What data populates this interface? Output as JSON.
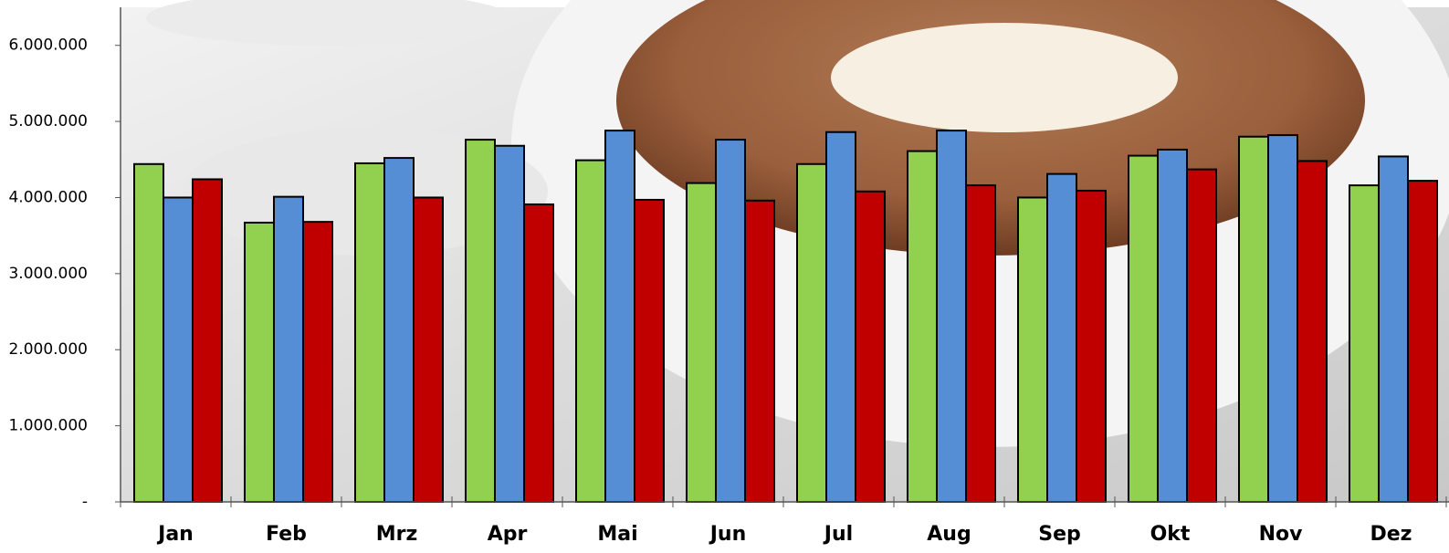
{
  "chart_data": {
    "type": "bar",
    "categories": [
      "Jan",
      "Feb",
      "Mrz",
      "Apr",
      "Mai",
      "Jun",
      "Jul",
      "Aug",
      "Sep",
      "Okt",
      "Nov",
      "Dez"
    ],
    "series": [
      {
        "color": "#92d050",
        "values": [
          4440000,
          3670000,
          4450000,
          4760000,
          4490000,
          4190000,
          4440000,
          4610000,
          4000000,
          4550000,
          4800000,
          4160000
        ]
      },
      {
        "color": "#558ed5",
        "values": [
          4000000,
          4010000,
          4520000,
          4680000,
          4880000,
          4760000,
          4860000,
          4880000,
          4310000,
          4630000,
          4820000,
          4540000
        ]
      },
      {
        "color": "#c00000",
        "values": [
          4240000,
          3680000,
          4000000,
          3910000,
          3970000,
          3960000,
          4080000,
          4160000,
          4090000,
          4370000,
          4480000,
          4220000
        ]
      }
    ],
    "ylim": [
      0,
      6500000
    ],
    "yticks": [
      {
        "value": 0,
        "label": "-"
      },
      {
        "value": 1000000,
        "label": "1.000.000"
      },
      {
        "value": 2000000,
        "label": "2.000.000"
      },
      {
        "value": 3000000,
        "label": "3.000.000"
      },
      {
        "value": 4000000,
        "label": "4.000.000"
      },
      {
        "value": 5000000,
        "label": "5.000.000"
      },
      {
        "value": 6000000,
        "label": "6.000.000"
      }
    ]
  }
}
